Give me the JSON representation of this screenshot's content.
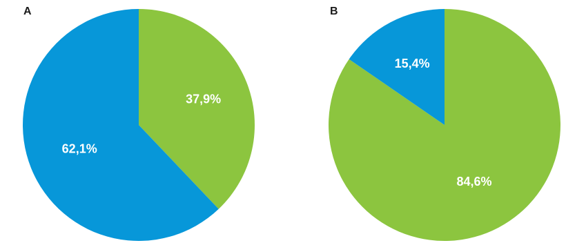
{
  "colors": {
    "blue": "#0797d9",
    "green": "#8cc53f"
  },
  "chart_data": [
    {
      "type": "pie",
      "panel_label": "A",
      "slices": [
        {
          "label": "37,9%",
          "value": 37.9,
          "color": "#8cc53f"
        },
        {
          "label": "62,1%",
          "value": 62.1,
          "color": "#0797d9"
        }
      ]
    },
    {
      "type": "pie",
      "panel_label": "B",
      "slices": [
        {
          "label": "84,6%",
          "value": 84.6,
          "color": "#8cc53f"
        },
        {
          "label": "15,4%",
          "value": 15.4,
          "color": "#0797d9"
        }
      ]
    }
  ]
}
